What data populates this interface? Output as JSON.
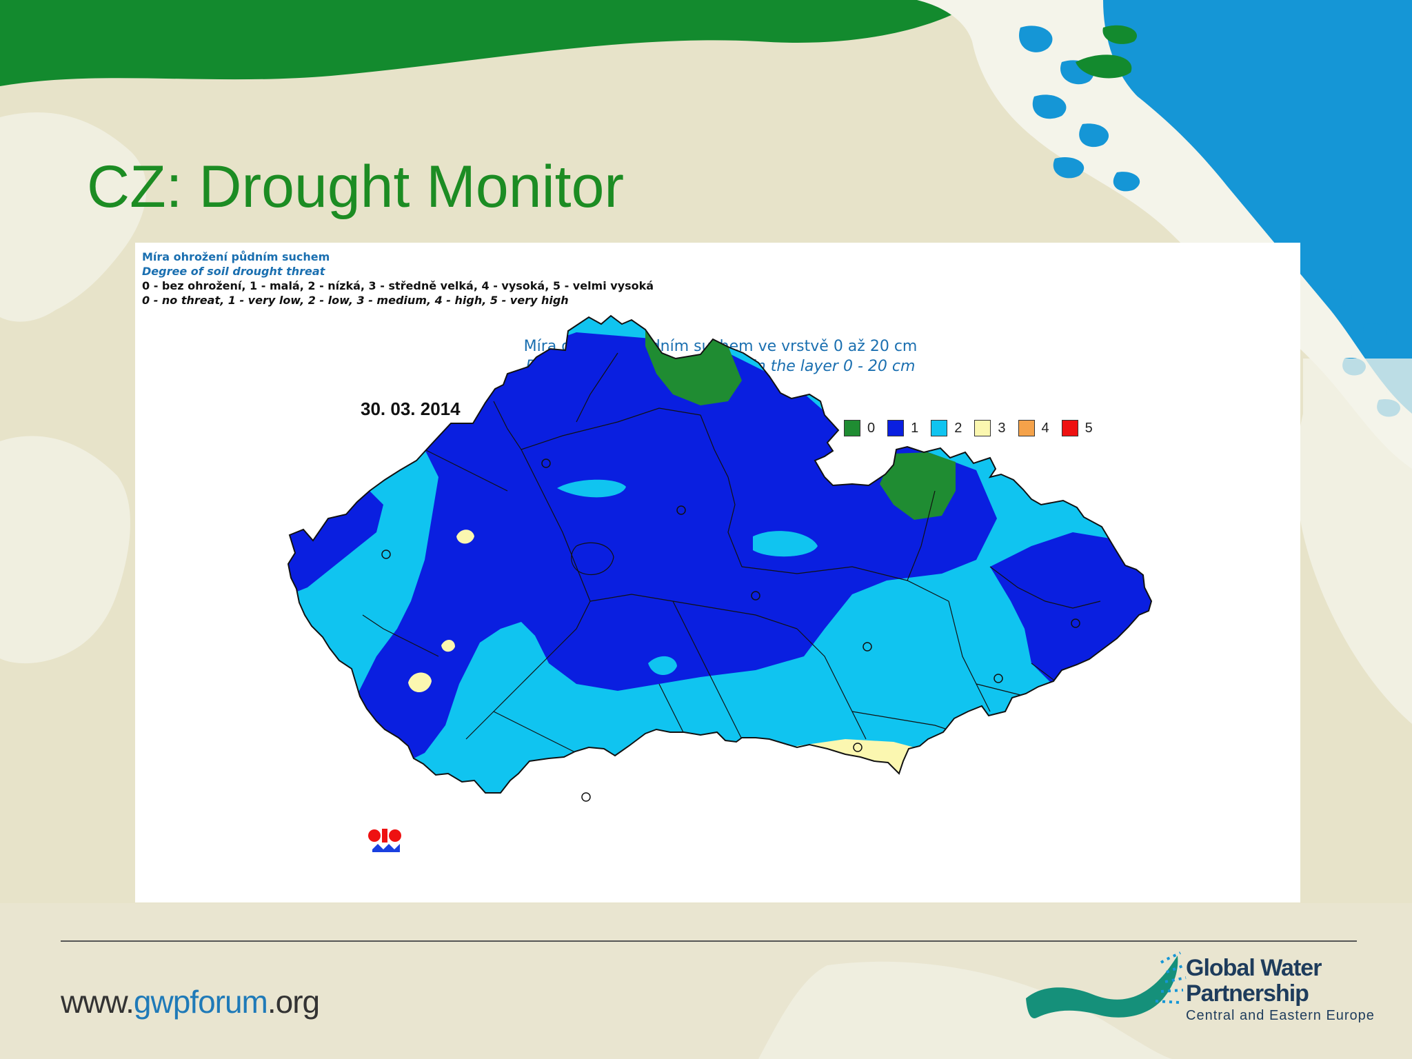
{
  "slide": {
    "title": "CZ: Drought Monitor"
  },
  "figure": {
    "header_cz": "Míra ohrožení půdním suchem",
    "header_en": "Degree of soil drought threat",
    "scale_cz": "0 - bez ohrožení, 1 - malá, 2 - nízká, 3 - středně velká, 4 - vysoká, 5 - velmi vysoká",
    "scale_en": "0 - no threat, 1 - very low, 2 - low, 3 - medium, 4 - high, 5 - very high",
    "map_title_cz": "Míra ohrožení půdním suchem ve vrstvě 0 až 20 cm",
    "map_title_en": "Degree of soil drought threat in the layer 0 - 20 cm",
    "date": "30. 03. 2014",
    "legend": [
      {
        "label": "0",
        "color": "#1f8c32"
      },
      {
        "label": "1",
        "color": "#0a1fe0"
      },
      {
        "label": "2",
        "color": "#10c4f0"
      },
      {
        "label": "3",
        "color": "#fbf7b0"
      },
      {
        "label": "4",
        "color": "#f4a24a"
      },
      {
        "label": "5",
        "color": "#ee1111"
      }
    ]
  },
  "footer": {
    "url_pre": "www.",
    "url_accent": "gwpforum",
    "url_post": ".org",
    "logo_line1": "Global Water",
    "logo_line2": "Partnership",
    "logo_line3": "Central and Eastern Europe"
  }
}
